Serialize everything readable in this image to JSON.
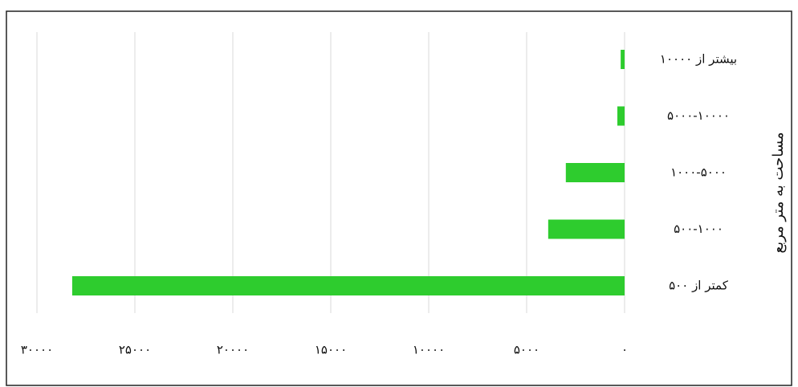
{
  "chart_data": {
    "type": "hbar",
    "y_label": "مساحت به متر مربع",
    "categories": [
      "بیشتر از ۱۰۰۰۰",
      "۵۰۰۰-۱۰۰۰۰",
      "۱۰۰۰-۵۰۰۰",
      "۵۰۰-۱۰۰۰",
      "کمتر از ۵۰۰"
    ],
    "values": [
      200,
      370,
      3000,
      3900,
      28200
    ],
    "color": "#2ecc2e",
    "xlim": [
      0,
      30000
    ],
    "x_reversed": true,
    "xticks": [
      {
        "value": 0,
        "label": "۰"
      },
      {
        "value": 5000,
        "label": "۵۰۰۰"
      },
      {
        "value": 10000,
        "label": "۱۰۰۰۰"
      },
      {
        "value": 15000,
        "label": "۱۵۰۰۰"
      },
      {
        "value": 20000,
        "label": "۲۰۰۰۰"
      },
      {
        "value": 25000,
        "label": "۲۵۰۰۰"
      },
      {
        "value": 30000,
        "label": "۳۰۰۰۰"
      }
    ],
    "grid": true
  }
}
